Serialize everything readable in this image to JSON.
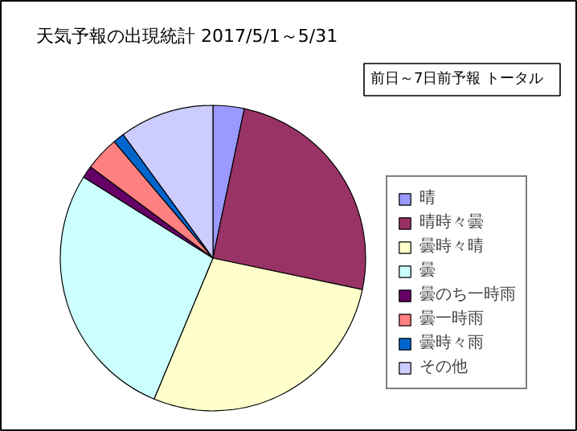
{
  "chart_data": {
    "type": "pie",
    "title": "天気予報の出現統計 2017/5/1～5/31",
    "subtitle": "前日～7日前予報 トータル",
    "categories": [
      "晴",
      "晴時々曇",
      "曇時々晴",
      "曇",
      "曇のち一時雨",
      "曇一時雨",
      "曇時々雨",
      "その他"
    ],
    "values": [
      3.3,
      25,
      28,
      27.6,
      1.3,
      3.6,
      1.2,
      10
    ],
    "colors": [
      "#9999ff",
      "#993366",
      "#ffffcc",
      "#ccffff",
      "#660066",
      "#ff8080",
      "#0066cc",
      "#ccccff"
    ],
    "legend": "right"
  }
}
